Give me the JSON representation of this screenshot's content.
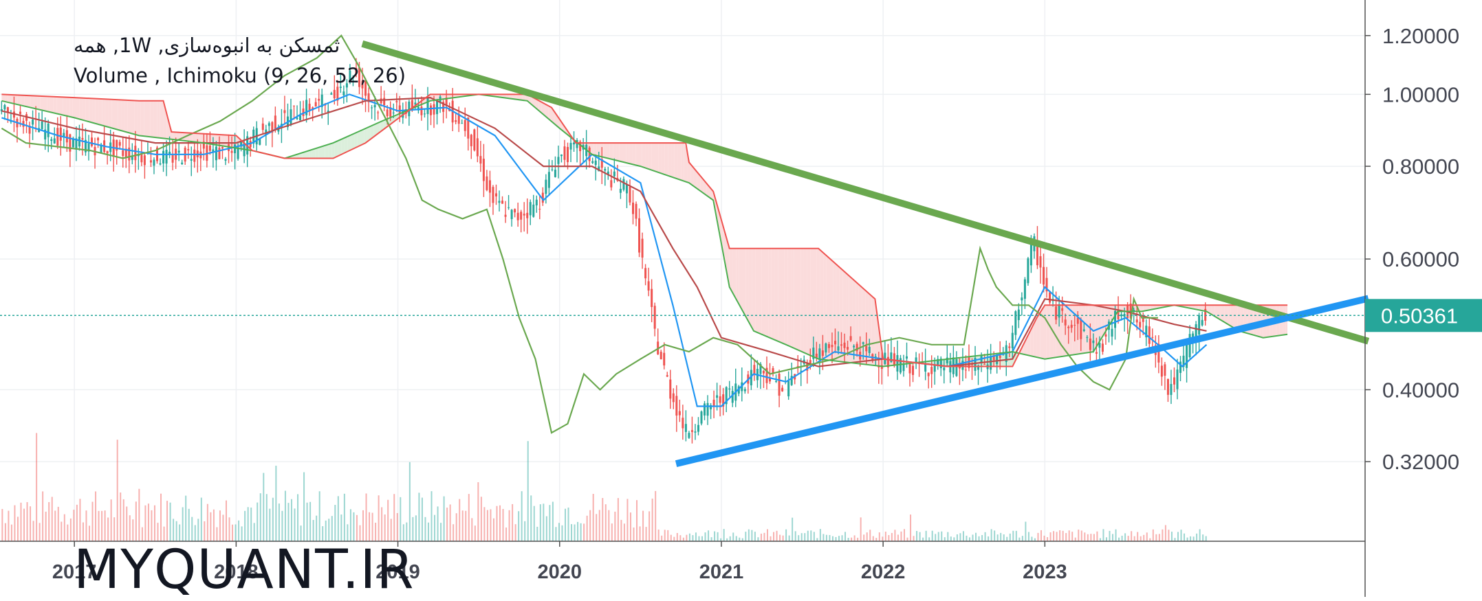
{
  "legend": {
    "line1": "ثمسکن به انبوه‌سازی, 1W, همه",
    "line2": "Volume , Ichimoku (9, 26, 52, 26)"
  },
  "watermark": "MYQUANT.IR",
  "colors": {
    "price_line": "#26a69a",
    "up_candle": "#26a69a",
    "down_candle": "#ef5350",
    "tenkan": "#2196f3",
    "kijun": "#b94a4a",
    "chikou": "#6aa84f",
    "span_a": "#4caf50",
    "span_b": "#ef5350",
    "cloud_bear": "#fbdcdc",
    "cloud_bull": "#dcefdc",
    "resistance": "#6aa84f",
    "support": "#2196f3"
  },
  "chart_data": {
    "type": "line",
    "scale": "log",
    "ylim": [
      0.25,
      1.34
    ],
    "xlim": [
      2016.54,
      2024.98
    ],
    "x_ticks": [
      "2017",
      "2018",
      "2019",
      "2020",
      "2021",
      "2022",
      "2023"
    ],
    "x_tick_values": [
      2017,
      2018,
      2019,
      2020,
      2021,
      2022,
      2023
    ],
    "y_ticks": [
      "1.20000",
      "1.00000",
      "0.80000",
      "0.60000",
      "0.40000",
      "0.32000"
    ],
    "y_tick_values": [
      1.2,
      1.0,
      0.8,
      0.6,
      0.4,
      0.32
    ],
    "last_price": "0.50361",
    "last_price_value": 0.50361,
    "trendlines": [
      {
        "name": "resistance",
        "x": [
          2018.78,
          2025.0
        ],
        "y": [
          1.17,
          0.465
        ]
      },
      {
        "name": "support",
        "x": [
          2020.72,
          2025.0
        ],
        "y": [
          0.318,
          0.531
        ]
      }
    ],
    "series": [
      {
        "key": "price",
        "x": [
          2016.55,
          2016.8,
          2017.0,
          2017.2,
          2017.4,
          2017.6,
          2017.8,
          2018.0,
          2018.2,
          2018.4,
          2018.6,
          2018.75,
          2018.85,
          2019.0,
          2019.15,
          2019.3,
          2019.45,
          2019.6,
          2019.75,
          2019.9,
          2020.0,
          2020.15,
          2020.3,
          2020.45,
          2020.55,
          2020.62,
          2020.7,
          2020.8,
          2020.95,
          2021.1,
          2021.25,
          2021.4,
          2021.6,
          2021.8,
          2022.0,
          2022.2,
          2022.4,
          2022.6,
          2022.8,
          2022.95,
          2023.05,
          2023.2,
          2023.35,
          2023.5,
          2023.6,
          2023.7,
          2023.78,
          2023.85,
          2023.92,
          2024.0
        ],
        "y": [
          0.95,
          0.9,
          0.86,
          0.85,
          0.83,
          0.82,
          0.84,
          0.83,
          0.9,
          0.95,
          0.98,
          1.08,
          0.97,
          0.95,
          0.96,
          0.97,
          0.9,
          0.72,
          0.68,
          0.72,
          0.82,
          0.85,
          0.78,
          0.74,
          0.56,
          0.46,
          0.4,
          0.35,
          0.38,
          0.4,
          0.43,
          0.4,
          0.45,
          0.46,
          0.44,
          0.43,
          0.43,
          0.43,
          0.45,
          0.63,
          0.52,
          0.49,
          0.45,
          0.52,
          0.49,
          0.46,
          0.4,
          0.42,
          0.47,
          0.50361
        ]
      },
      {
        "key": "tenkan",
        "x": [
          2016.55,
          2016.9,
          2017.2,
          2017.5,
          2017.8,
          2018.1,
          2018.4,
          2018.7,
          2019.0,
          2019.3,
          2019.6,
          2019.9,
          2020.2,
          2020.5,
          2020.7,
          2020.85,
          2021.0,
          2021.2,
          2021.4,
          2021.7,
          2022.0,
          2022.4,
          2022.8,
          2023.0,
          2023.3,
          2023.5,
          2023.7,
          2023.85,
          2024.0
        ],
        "y": [
          0.93,
          0.88,
          0.85,
          0.83,
          0.83,
          0.86,
          0.94,
          1.0,
          0.95,
          0.96,
          0.88,
          0.72,
          0.83,
          0.76,
          0.52,
          0.38,
          0.38,
          0.42,
          0.41,
          0.45,
          0.44,
          0.43,
          0.45,
          0.55,
          0.48,
          0.5,
          0.46,
          0.43,
          0.46
        ]
      },
      {
        "key": "kijun",
        "x": [
          2016.55,
          2017.0,
          2017.5,
          2018.0,
          2018.4,
          2018.8,
          2019.2,
          2019.6,
          2019.9,
          2020.2,
          2020.5,
          2020.7,
          2020.85,
          2021.0,
          2021.3,
          2021.6,
          2022.0,
          2022.4,
          2022.8,
          2023.0,
          2023.3,
          2023.5,
          2023.8,
          2024.0
        ],
        "y": [
          0.95,
          0.9,
          0.86,
          0.86,
          0.92,
          0.98,
          0.99,
          0.9,
          0.8,
          0.8,
          0.74,
          0.62,
          0.55,
          0.47,
          0.45,
          0.43,
          0.44,
          0.43,
          0.44,
          0.53,
          0.52,
          0.51,
          0.49,
          0.48
        ]
      },
      {
        "key": "chikou",
        "x": [
          2016.55,
          2016.7,
          2016.9,
          2017.1,
          2017.3,
          2017.5,
          2017.7,
          2017.9,
          2018.1,
          2018.3,
          2018.5,
          2018.65,
          2018.75,
          2018.9,
          2019.05,
          2019.15,
          2019.25,
          2019.4,
          2019.55,
          2019.65,
          2019.75,
          2019.85,
          2019.95,
          2020.05,
          2020.15,
          2020.25,
          2020.35,
          2020.5,
          2020.65,
          2020.8,
          2020.95,
          2021.1,
          2021.3,
          2021.5,
          2021.7,
          2021.9,
          2022.1,
          2022.3,
          2022.5,
          2022.6,
          2022.65,
          2022.7,
          2022.8,
          2022.9,
          2023.0,
          2023.1,
          2023.2,
          2023.3,
          2023.4,
          2023.5,
          2023.55,
          2023.6,
          2023.7
        ],
        "y": [
          0.9,
          0.86,
          0.85,
          0.84,
          0.82,
          0.84,
          0.88,
          0.92,
          0.98,
          1.06,
          1.12,
          1.2,
          1.1,
          0.95,
          0.82,
          0.72,
          0.7,
          0.68,
          0.7,
          0.6,
          0.5,
          0.44,
          0.35,
          0.36,
          0.42,
          0.4,
          0.42,
          0.44,
          0.46,
          0.45,
          0.47,
          0.46,
          0.42,
          0.43,
          0.44,
          0.46,
          0.47,
          0.46,
          0.46,
          0.62,
          0.58,
          0.55,
          0.52,
          0.52,
          0.5,
          0.46,
          0.43,
          0.41,
          0.4,
          0.44,
          0.53,
          0.5,
          0.5
        ]
      },
      {
        "key": "span_a",
        "x": [
          2016.55,
          2017.0,
          2017.4,
          2017.8,
          2018.1,
          2018.3,
          2018.6,
          2018.9,
          2019.2,
          2019.5,
          2019.8,
          2020.0,
          2020.2,
          2020.5,
          2020.8,
          2020.95,
          2021.05,
          2021.2,
          2021.4,
          2021.6,
          2022.0,
          2022.4,
          2022.8,
          2023.0,
          2023.3,
          2023.45,
          2023.6,
          2023.8,
          2024.0,
          2024.2,
          2024.35,
          2024.5
        ],
        "y": [
          0.98,
          0.93,
          0.88,
          0.86,
          0.84,
          0.82,
          0.86,
          0.92,
          0.98,
          1.0,
          0.98,
          0.9,
          0.83,
          0.8,
          0.76,
          0.72,
          0.55,
          0.48,
          0.46,
          0.44,
          0.43,
          0.44,
          0.45,
          0.44,
          0.45,
          0.51,
          0.51,
          0.52,
          0.51,
          0.48,
          0.47,
          0.475
        ]
      },
      {
        "key": "span_b",
        "x": [
          2016.55,
          2017.0,
          2017.4,
          2017.55,
          2017.6,
          2018.0,
          2018.1,
          2018.3,
          2018.6,
          2018.8,
          2019.2,
          2019.5,
          2019.8,
          2019.95,
          2020.1,
          2020.4,
          2020.55,
          2020.78,
          2020.8,
          2020.95,
          2021.05,
          2021.2,
          2021.6,
          2021.95,
          2022.0,
          2022.4,
          2022.8,
          2022.95,
          2023.0,
          2023.3,
          2023.45,
          2023.8,
          2024.0,
          2024.25,
          2024.5
        ],
        "y": [
          1.0,
          0.99,
          0.98,
          0.98,
          0.89,
          0.88,
          0.84,
          0.82,
          0.82,
          0.86,
          1.0,
          1.0,
          1.0,
          0.96,
          0.86,
          0.86,
          0.86,
          0.86,
          0.81,
          0.74,
          0.62,
          0.62,
          0.62,
          0.53,
          0.44,
          0.43,
          0.43,
          0.5,
          0.52,
          0.52,
          0.52,
          0.52,
          0.52,
          0.52,
          0.52
        ]
      }
    ]
  }
}
